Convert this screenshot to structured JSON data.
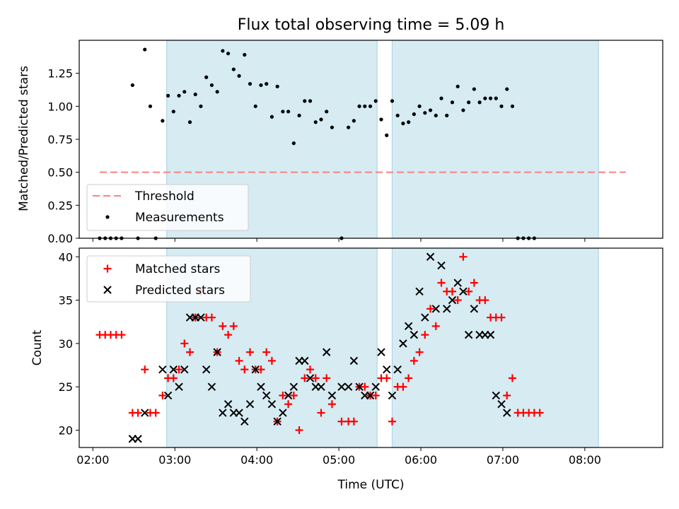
{
  "chart_data": [
    {
      "type": "scatter",
      "title": "Flux total observing time = 5.09 h",
      "xlabel": "",
      "ylabel": "Matched/Predicted stars",
      "xlim": [
        "01:50",
        "08:57"
      ],
      "ylim": [
        0,
        1.5
      ],
      "yticks": [
        "0.00",
        "0.25",
        "0.50",
        "0.75",
        "1.00",
        "1.25"
      ],
      "xticks": [
        "02:00",
        "03:00",
        "04:00",
        "05:00",
        "06:00",
        "07:00",
        "08:00"
      ],
      "shaded_intervals": [
        [
          "02:54",
          "05:28"
        ],
        [
          "05:39",
          "08:10"
        ]
      ],
      "threshold": {
        "value": 0.5,
        "x_range": [
          "02:05",
          "08:30"
        ]
      },
      "legend": {
        "position": "bottom-left",
        "entries": [
          "Threshold",
          "Measurements"
        ]
      },
      "series": [
        {
          "name": "Measurements",
          "points": [
            [
              "02:05",
              0.0
            ],
            [
              "02:09",
              0.0
            ],
            [
              "02:13",
              0.0
            ],
            [
              "02:17",
              0.0
            ],
            [
              "02:21",
              0.0
            ],
            [
              "02:29",
              1.16
            ],
            [
              "02:33",
              0.0
            ],
            [
              "02:38",
              1.43
            ],
            [
              "02:42",
              1.0
            ],
            [
              "02:46",
              0.0
            ],
            [
              "02:51",
              0.89
            ],
            [
              "02:55",
              1.08
            ],
            [
              "02:59",
              0.96
            ],
            [
              "03:03",
              1.08
            ],
            [
              "03:07",
              1.11
            ],
            [
              "03:11",
              0.88
            ],
            [
              "03:15",
              1.09
            ],
            [
              "03:19",
              1.0
            ],
            [
              "03:23",
              1.22
            ],
            [
              "03:27",
              1.16
            ],
            [
              "03:31",
              1.11
            ],
            [
              "03:35",
              1.42
            ],
            [
              "03:39",
              1.4
            ],
            [
              "03:43",
              1.28
            ],
            [
              "03:47",
              1.23
            ],
            [
              "03:51",
              1.39
            ],
            [
              "03:55",
              1.17
            ],
            [
              "03:59",
              1.0
            ],
            [
              "04:03",
              1.16
            ],
            [
              "04:07",
              1.17
            ],
            [
              "04:11",
              0.92
            ],
            [
              "04:15",
              1.15
            ],
            [
              "04:19",
              0.96
            ],
            [
              "04:23",
              0.96
            ],
            [
              "04:27",
              0.72
            ],
            [
              "04:31",
              0.93
            ],
            [
              "04:35",
              1.04
            ],
            [
              "04:39",
              1.04
            ],
            [
              "04:43",
              0.88
            ],
            [
              "04:47",
              0.9
            ],
            [
              "04:51",
              0.96
            ],
            [
              "04:55",
              0.84
            ],
            [
              "05:02",
              0.0
            ],
            [
              "05:07",
              0.84
            ],
            [
              "05:11",
              0.89
            ],
            [
              "05:15",
              1.0
            ],
            [
              "05:19",
              1.0
            ],
            [
              "05:23",
              1.0
            ],
            [
              "05:27",
              1.04
            ],
            [
              "05:31",
              0.9
            ],
            [
              "05:35",
              0.78
            ],
            [
              "05:39",
              1.04
            ],
            [
              "05:43",
              0.93
            ],
            [
              "05:47",
              0.87
            ],
            [
              "05:51",
              0.88
            ],
            [
              "05:55",
              0.94
            ],
            [
              "05:59",
              1.0
            ],
            [
              "06:03",
              0.95
            ],
            [
              "06:07",
              0.97
            ],
            [
              "06:11",
              0.93
            ],
            [
              "06:15",
              1.06
            ],
            [
              "06:19",
              0.93
            ],
            [
              "06:23",
              1.03
            ],
            [
              "06:27",
              1.15
            ],
            [
              "06:31",
              0.97
            ],
            [
              "06:35",
              1.03
            ],
            [
              "06:39",
              1.13
            ],
            [
              "06:43",
              1.03
            ],
            [
              "06:47",
              1.06
            ],
            [
              "06:51",
              1.06
            ],
            [
              "06:55",
              1.06
            ],
            [
              "06:59",
              1.0
            ],
            [
              "07:03",
              1.13
            ],
            [
              "07:07",
              1.0
            ],
            [
              "07:11",
              0.0
            ],
            [
              "07:15",
              0.0
            ],
            [
              "07:19",
              0.0
            ],
            [
              "07:23",
              0.0
            ]
          ]
        }
      ]
    },
    {
      "type": "scatter",
      "title": "",
      "xlabel": "Time (UTC)",
      "ylabel": "Count",
      "xlim": [
        "01:50",
        "08:57"
      ],
      "ylim": [
        18,
        41
      ],
      "yticks": [
        "20",
        "25",
        "30",
        "35",
        "40"
      ],
      "xticks": [
        "02:00",
        "03:00",
        "04:00",
        "05:00",
        "06:00",
        "07:00",
        "08:00"
      ],
      "shaded_intervals": [
        [
          "02:54",
          "05:28"
        ],
        [
          "05:39",
          "08:10"
        ]
      ],
      "legend": {
        "position": "top-left",
        "entries": [
          "Matched stars",
          "Predicted stars"
        ]
      },
      "series": [
        {
          "name": "Matched stars",
          "points": [
            [
              "02:05",
              31
            ],
            [
              "02:09",
              31
            ],
            [
              "02:13",
              31
            ],
            [
              "02:17",
              31
            ],
            [
              "02:21",
              31
            ],
            [
              "02:29",
              22
            ],
            [
              "02:33",
              22
            ],
            [
              "02:38",
              27
            ],
            [
              "02:42",
              22
            ],
            [
              "02:46",
              22
            ],
            [
              "02:51",
              24
            ],
            [
              "02:55",
              26
            ],
            [
              "02:59",
              26
            ],
            [
              "03:03",
              27
            ],
            [
              "03:07",
              30
            ],
            [
              "03:11",
              29
            ],
            [
              "03:15",
              33
            ],
            [
              "03:19",
              36
            ],
            [
              "03:23",
              33
            ],
            [
              "03:27",
              33
            ],
            [
              "03:31",
              29
            ],
            [
              "03:35",
              32
            ],
            [
              "03:39",
              31
            ],
            [
              "03:43",
              32
            ],
            [
              "03:47",
              28
            ],
            [
              "03:51",
              27
            ],
            [
              "03:55",
              29
            ],
            [
              "03:59",
              27
            ],
            [
              "04:03",
              27
            ],
            [
              "04:07",
              29
            ],
            [
              "04:11",
              28
            ],
            [
              "04:15",
              21
            ],
            [
              "04:19",
              24
            ],
            [
              "04:23",
              23
            ],
            [
              "04:27",
              24
            ],
            [
              "04:31",
              20
            ],
            [
              "04:35",
              26
            ],
            [
              "04:39",
              27
            ],
            [
              "04:43",
              26
            ],
            [
              "04:47",
              22
            ],
            [
              "04:51",
              26
            ],
            [
              "04:55",
              23
            ],
            [
              "05:02",
              21
            ],
            [
              "05:07",
              21
            ],
            [
              "05:11",
              21
            ],
            [
              "05:15",
              25
            ],
            [
              "05:19",
              25
            ],
            [
              "05:23",
              24
            ],
            [
              "05:27",
              24
            ],
            [
              "05:31",
              26
            ],
            [
              "05:35",
              26
            ],
            [
              "05:39",
              21
            ],
            [
              "05:43",
              25
            ],
            [
              "05:47",
              25
            ],
            [
              "05:51",
              26
            ],
            [
              "05:55",
              28
            ],
            [
              "05:59",
              29
            ],
            [
              "06:03",
              31
            ],
            [
              "06:07",
              34
            ],
            [
              "06:11",
              32
            ],
            [
              "06:15",
              37
            ],
            [
              "06:19",
              36
            ],
            [
              "06:23",
              36
            ],
            [
              "06:27",
              35
            ],
            [
              "06:31",
              40
            ],
            [
              "06:35",
              36
            ],
            [
              "06:39",
              37
            ],
            [
              "06:43",
              35
            ],
            [
              "06:47",
              35
            ],
            [
              "06:51",
              33
            ],
            [
              "06:55",
              33
            ],
            [
              "06:59",
              33
            ],
            [
              "07:03",
              24
            ],
            [
              "07:07",
              26
            ],
            [
              "07:11",
              22
            ],
            [
              "07:15",
              22
            ],
            [
              "07:19",
              22
            ],
            [
              "07:23",
              22
            ],
            [
              "07:27",
              22
            ]
          ]
        },
        {
          "name": "Predicted stars",
          "points": [
            [
              "02:29",
              19
            ],
            [
              "02:33",
              19
            ],
            [
              "02:38",
              22
            ],
            [
              "02:51",
              27
            ],
            [
              "02:55",
              24
            ],
            [
              "02:59",
              27
            ],
            [
              "03:03",
              25
            ],
            [
              "03:07",
              27
            ],
            [
              "03:11",
              33
            ],
            [
              "03:15",
              33
            ],
            [
              "03:19",
              33
            ],
            [
              "03:23",
              27
            ],
            [
              "03:27",
              25
            ],
            [
              "03:31",
              29
            ],
            [
              "03:35",
              22
            ],
            [
              "03:39",
              23
            ],
            [
              "03:43",
              22
            ],
            [
              "03:47",
              22
            ],
            [
              "03:51",
              21
            ],
            [
              "03:55",
              23
            ],
            [
              "03:59",
              27
            ],
            [
              "04:03",
              25
            ],
            [
              "04:07",
              24
            ],
            [
              "04:11",
              23
            ],
            [
              "04:15",
              21
            ],
            [
              "04:19",
              22
            ],
            [
              "04:23",
              24
            ],
            [
              "04:27",
              25
            ],
            [
              "04:31",
              28
            ],
            [
              "04:35",
              28
            ],
            [
              "04:39",
              26
            ],
            [
              "04:43",
              25
            ],
            [
              "04:47",
              25
            ],
            [
              "04:51",
              29
            ],
            [
              "04:55",
              24
            ],
            [
              "05:02",
              25
            ],
            [
              "05:07",
              25
            ],
            [
              "05:11",
              28
            ],
            [
              "05:15",
              25
            ],
            [
              "05:19",
              24
            ],
            [
              "05:23",
              24
            ],
            [
              "05:27",
              25
            ],
            [
              "05:31",
              29
            ],
            [
              "05:35",
              27
            ],
            [
              "05:39",
              24
            ],
            [
              "05:43",
              27
            ],
            [
              "05:47",
              30
            ],
            [
              "05:51",
              32
            ],
            [
              "05:55",
              31
            ],
            [
              "05:59",
              36
            ],
            [
              "06:03",
              33
            ],
            [
              "06:07",
              40
            ],
            [
              "06:11",
              34
            ],
            [
              "06:15",
              39
            ],
            [
              "06:19",
              34
            ],
            [
              "06:23",
              35
            ],
            [
              "06:27",
              37
            ],
            [
              "06:31",
              36
            ],
            [
              "06:35",
              31
            ],
            [
              "06:39",
              34
            ],
            [
              "06:43",
              31
            ],
            [
              "06:47",
              31
            ],
            [
              "06:51",
              31
            ],
            [
              "06:55",
              24
            ],
            [
              "06:59",
              23
            ],
            [
              "07:03",
              22
            ]
          ]
        }
      ]
    }
  ],
  "colors": {
    "shade": "#add8e6",
    "threshold": "#ff7f7f",
    "measurements": "#000000",
    "matched": "#ff0000",
    "predicted": "#000000"
  }
}
